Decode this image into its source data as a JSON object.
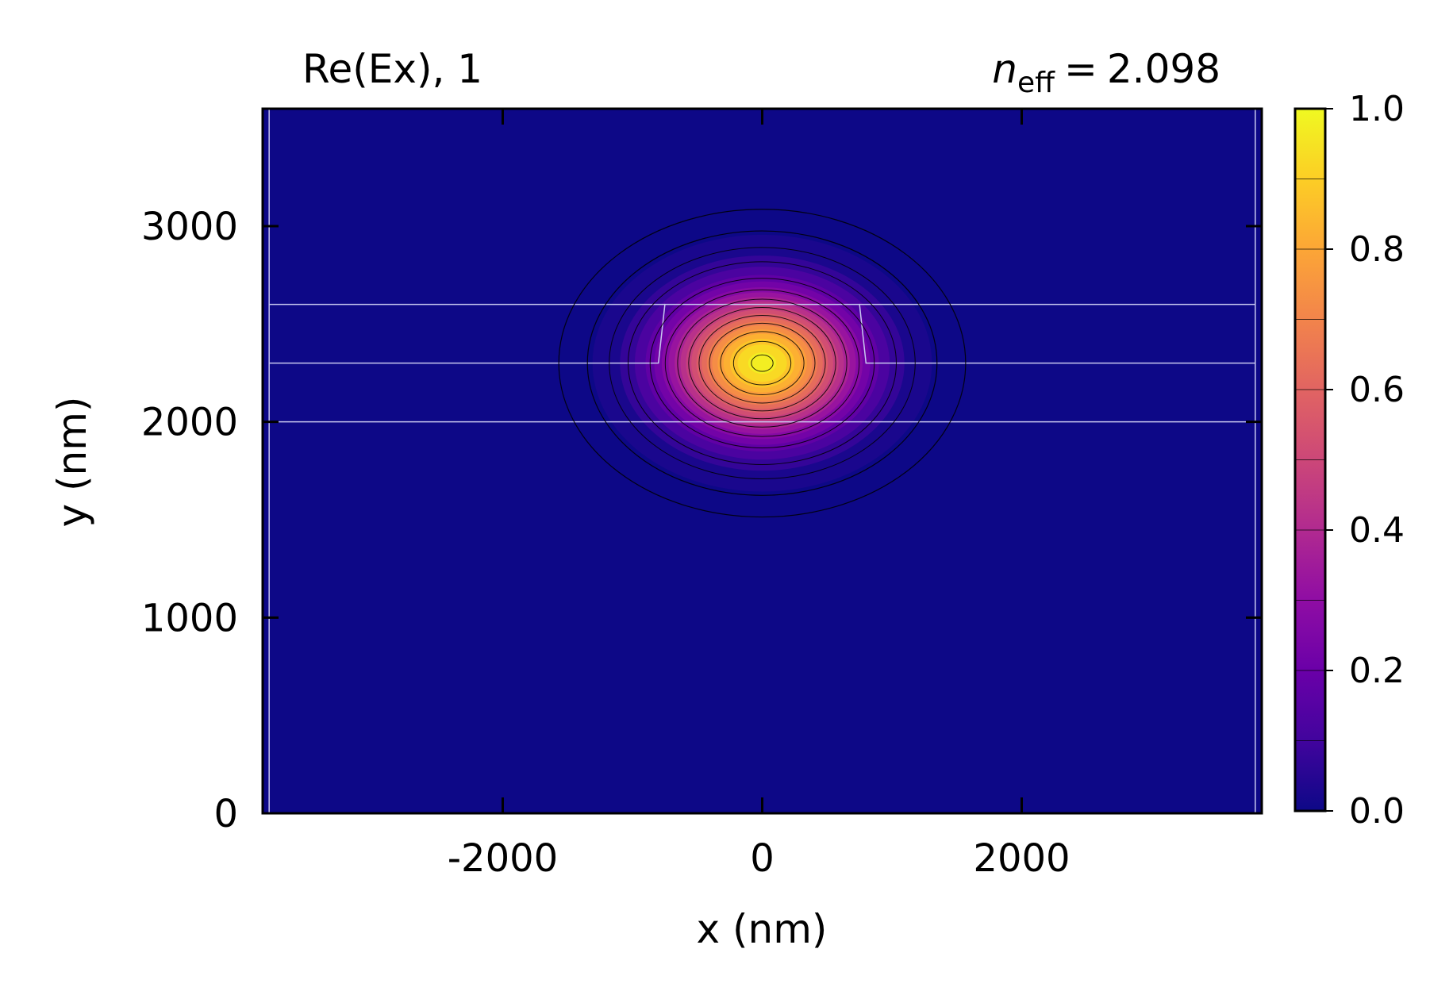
{
  "chart_data": {
    "type": "heatmap",
    "title": "Re(Ex), 1",
    "annotation": {
      "symbol": "n",
      "subscript": "eff",
      "operator": "=",
      "value": "2.098"
    },
    "xlabel": "x (nm)",
    "ylabel": "y (nm)",
    "xlim": [
      -3850,
      3850
    ],
    "ylim": [
      0,
      3600
    ],
    "xticks": [
      -2000,
      0,
      2000
    ],
    "xtick_labels": [
      "-2000",
      "0",
      "2000"
    ],
    "yticks": [
      0,
      1000,
      2000,
      3000
    ],
    "ytick_labels": [
      "0",
      "1000",
      "2000",
      "3000"
    ],
    "colormap": "plasma",
    "colorbar": {
      "min": 0.0,
      "max": 1.0,
      "ticks": [
        0.0,
        0.2,
        0.4,
        0.6,
        0.8,
        1.0
      ],
      "tick_labels": [
        "0.0",
        "0.2",
        "0.4",
        "0.6",
        "0.8",
        "1.0"
      ],
      "levels": 20
    },
    "field": {
      "peak_value": 1.0,
      "peak_x": 0,
      "peak_y": 2300,
      "sigma_x": 430,
      "sigma_y": 230
    },
    "contour_levels": [
      0.005,
      0.02,
      0.05,
      0.1,
      0.2,
      0.3,
      0.4,
      0.5,
      0.6,
      0.7,
      0.8,
      0.9,
      0.985
    ],
    "structure": {
      "cladding_top_y": 2600,
      "core_bottom_y": 2000,
      "slab_top_y": 2300,
      "rib_top_half_width": 750,
      "rib_bottom_half_width": 800,
      "window_x": [
        -3800,
        3800
      ],
      "line_color": "#c8c8f0"
    },
    "background_color": "#0d0887",
    "grid": false,
    "legend": "none"
  }
}
